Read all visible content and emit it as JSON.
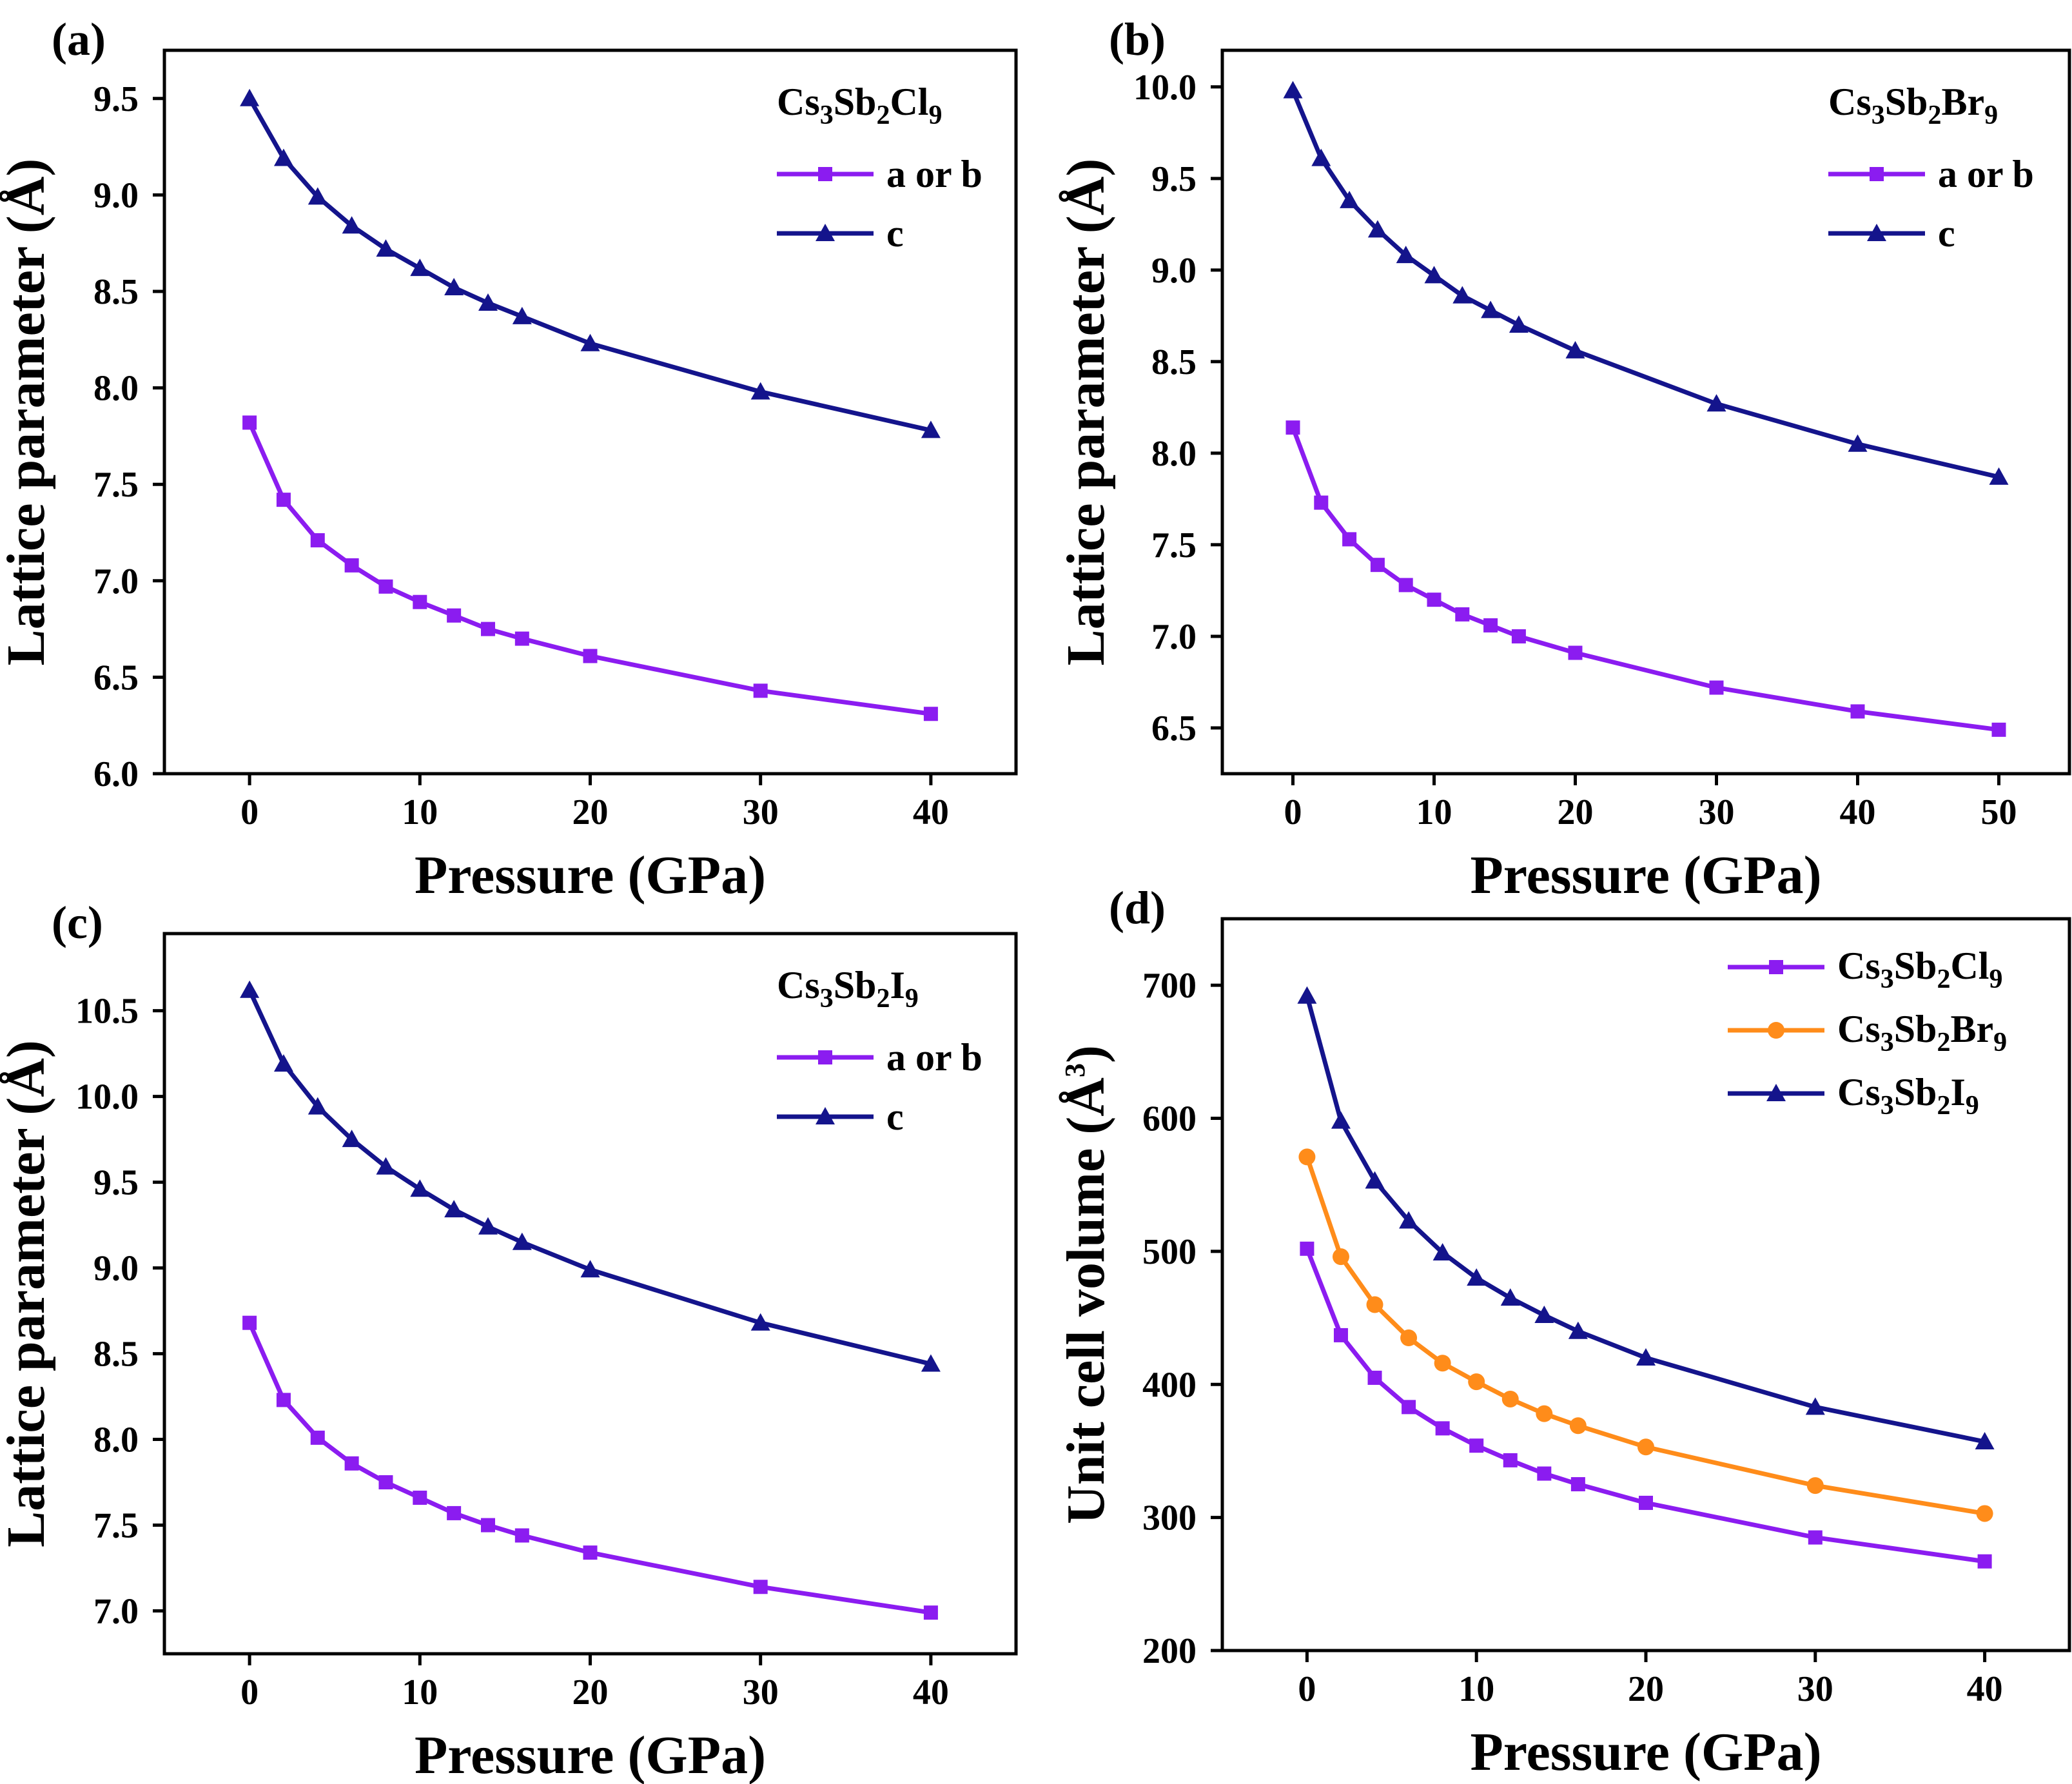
{
  "colors": {
    "purple": "#8B1CF0",
    "navy": "#14148C",
    "orange": "#FF8C1A"
  },
  "chart_data": [
    {
      "type": "line",
      "panel": "(a)",
      "legend_title": {
        "parts": [
          [
            "Cs",
            "n"
          ],
          [
            "3",
            "sub"
          ],
          [
            "Sb",
            "n"
          ],
          [
            "2",
            "sub"
          ],
          [
            "Cl",
            "n"
          ],
          [
            "9",
            "sub"
          ]
        ]
      },
      "xlabel": "Pressure (GPa)",
      "ylabel": "Lattice parameter (Å)",
      "xlim": [
        -5,
        45
      ],
      "ylim": [
        6.0,
        9.75
      ],
      "xticks": [
        0,
        10,
        20,
        30,
        40
      ],
      "xtick_labels": [
        "0",
        "10",
        "20",
        "30",
        "40"
      ],
      "yticks": [
        6.0,
        6.5,
        7.0,
        7.5,
        8.0,
        8.5,
        9.0,
        9.5
      ],
      "ytick_labels": [
        "6.0",
        "6.5",
        "7.0",
        "7.5",
        "8.0",
        "8.5",
        "9.0",
        "9.5"
      ],
      "x": [
        0,
        2,
        4,
        6,
        8,
        10,
        12,
        14,
        16,
        20,
        30,
        40
      ],
      "series": [
        {
          "name": "a or b",
          "marker": "square",
          "color": "#8B1CF0",
          "values": [
            7.82,
            7.42,
            7.21,
            7.08,
            6.97,
            6.89,
            6.82,
            6.75,
            6.7,
            6.61,
            6.43,
            6.31
          ]
        },
        {
          "name": "c",
          "marker": "triangle",
          "color": "#14148C",
          "values": [
            9.5,
            9.19,
            8.99,
            8.84,
            8.72,
            8.62,
            8.52,
            8.44,
            8.37,
            8.23,
            7.98,
            7.78
          ]
        }
      ]
    },
    {
      "type": "line",
      "panel": "(b)",
      "legend_title": {
        "parts": [
          [
            "Cs",
            "n"
          ],
          [
            "3",
            "sub"
          ],
          [
            "Sb",
            "n"
          ],
          [
            "2",
            "sub"
          ],
          [
            "Br",
            "n"
          ],
          [
            "9",
            "sub"
          ]
        ]
      },
      "xlabel": "Pressure (GPa)",
      "ylabel": "Lattice parameter (Å)",
      "xlim": [
        -5,
        55
      ],
      "ylim": [
        6.25,
        10.2
      ],
      "xticks": [
        0,
        10,
        20,
        30,
        40,
        50
      ],
      "xtick_labels": [
        "0",
        "10",
        "20",
        "30",
        "40",
        "50"
      ],
      "yticks": [
        6.5,
        7.0,
        7.5,
        8.0,
        8.5,
        9.0,
        9.5,
        10.0
      ],
      "ytick_labels": [
        "6.5",
        "7.0",
        "7.5",
        "8.0",
        "8.5",
        "9.0",
        "9.5",
        "10.0"
      ],
      "x": [
        0,
        2,
        4,
        6,
        8,
        10,
        12,
        14,
        16,
        20,
        30,
        40,
        50
      ],
      "series": [
        {
          "name": "a or b",
          "marker": "square",
          "color": "#8B1CF0",
          "values": [
            8.14,
            7.73,
            7.53,
            7.39,
            7.28,
            7.2,
            7.12,
            7.06,
            7.0,
            6.91,
            6.72,
            6.59,
            6.49
          ]
        },
        {
          "name": "c",
          "marker": "triangle",
          "color": "#14148C",
          "values": [
            9.98,
            9.61,
            9.38,
            9.22,
            9.08,
            8.97,
            8.86,
            8.78,
            8.7,
            8.56,
            8.27,
            8.05,
            7.87
          ]
        }
      ]
    },
    {
      "type": "line",
      "panel": "(c)",
      "legend_title": {
        "parts": [
          [
            "Cs",
            "n"
          ],
          [
            "3",
            "sub"
          ],
          [
            "Sb",
            "n"
          ],
          [
            "2",
            "sub"
          ],
          [
            "I",
            "n"
          ],
          [
            "9",
            "sub"
          ]
        ]
      },
      "xlabel": "Pressure (GPa)",
      "ylabel": "Lattice parameter (Å)",
      "xlim": [
        -5,
        45
      ],
      "ylim": [
        6.75,
        10.95
      ],
      "xticks": [
        0,
        10,
        20,
        30,
        40
      ],
      "xtick_labels": [
        "0",
        "10",
        "20",
        "30",
        "40"
      ],
      "yticks": [
        7.0,
        7.5,
        8.0,
        8.5,
        9.0,
        9.5,
        10.0,
        10.5
      ],
      "ytick_labels": [
        "7.0",
        "7.5",
        "8.0",
        "8.5",
        "9.0",
        "9.5",
        "10.0",
        "10.5"
      ],
      "x": [
        0,
        2,
        4,
        6,
        8,
        10,
        12,
        14,
        16,
        20,
        30,
        40
      ],
      "series": [
        {
          "name": "a or b",
          "marker": "square",
          "color": "#8B1CF0",
          "values": [
            8.68,
            8.23,
            8.01,
            7.86,
            7.75,
            7.66,
            7.57,
            7.5,
            7.44,
            7.34,
            7.14,
            6.99
          ]
        },
        {
          "name": "c",
          "marker": "triangle",
          "color": "#14148C",
          "values": [
            10.62,
            10.19,
            9.94,
            9.75,
            9.59,
            9.46,
            9.34,
            9.24,
            9.15,
            8.99,
            8.68,
            8.44
          ]
        }
      ]
    },
    {
      "type": "line",
      "panel": "(d)",
      "xlabel": "Pressure (GPa)",
      "ylabel": "Unit cell volume (Å3)",
      "xlim": [
        -5,
        45
      ],
      "ylim": [
        200,
        750
      ],
      "xticks": [
        0,
        10,
        20,
        30,
        40
      ],
      "xtick_labels": [
        "0",
        "10",
        "20",
        "30",
        "40"
      ],
      "yticks": [
        200,
        300,
        400,
        500,
        600,
        700
      ],
      "ytick_labels": [
        "200",
        "300",
        "400",
        "500",
        "600",
        "700"
      ],
      "x": [
        0,
        2,
        4,
        6,
        8,
        10,
        12,
        14,
        16,
        20,
        30,
        40
      ],
      "series": [
        {
          "name": "Cs3Sb2Cl9",
          "parts": [
            [
              "Cs",
              "n"
            ],
            [
              "3",
              "sub"
            ],
            [
              "Sb",
              "n"
            ],
            [
              "2",
              "sub"
            ],
            [
              "Cl",
              "n"
            ],
            [
              "9",
              "sub"
            ]
          ],
          "marker": "square",
          "color": "#8B1CF0",
          "values": [
            502,
            437,
            405,
            383,
            367,
            354,
            343,
            333,
            325,
            311,
            285,
            267
          ]
        },
        {
          "name": "Cs3Sb2Br9",
          "parts": [
            [
              "Cs",
              "n"
            ],
            [
              "3",
              "sub"
            ],
            [
              "Sb",
              "n"
            ],
            [
              "2",
              "sub"
            ],
            [
              "Br",
              "n"
            ],
            [
              "9",
              "sub"
            ]
          ],
          "marker": "circle",
          "color": "#FF8C1A",
          "values": [
            571,
            496,
            460,
            435,
            416,
            402,
            389,
            378,
            369,
            353,
            324,
            303
          ]
        },
        {
          "name": "Cs3Sb2I9",
          "parts": [
            [
              "Cs",
              "n"
            ],
            [
              "3",
              "sub"
            ],
            [
              "Sb",
              "n"
            ],
            [
              "2",
              "sub"
            ],
            [
              "I",
              "n"
            ],
            [
              "9",
              "sub"
            ]
          ],
          "marker": "triangle",
          "color": "#14148C",
          "values": [
            692,
            598,
            553,
            523,
            499,
            480,
            465,
            452,
            440,
            420,
            383,
            357
          ]
        }
      ]
    }
  ]
}
